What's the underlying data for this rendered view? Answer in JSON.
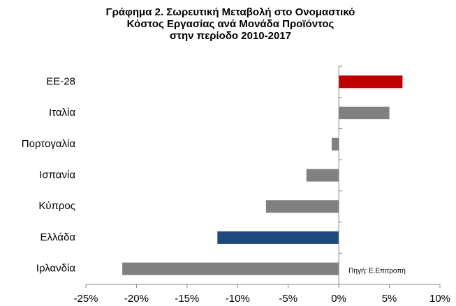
{
  "chart_data": {
    "type": "hbar",
    "title": [
      "Γράφημα 2. Σωρευτική Μεταβολή στο Ονομαστικό",
      "Κόστος Εργασίας ανά Μονάδα Προϊόντος",
      "στην περίοδο 2010-2017"
    ],
    "categories": [
      "ΕΕ-28",
      "Ιταλία",
      "Πορτογαλία",
      "Ισπανία",
      "Κύπρος",
      "Ελλάδα",
      "Ιρλανδία"
    ],
    "values": [
      6.3,
      5.0,
      -0.7,
      -3.2,
      -7.2,
      -12.0,
      -21.4
    ],
    "colors": [
      "#c00000",
      "#808080",
      "#808080",
      "#808080",
      "#808080",
      "#1f497d",
      "#808080"
    ],
    "xlim": [
      -25,
      10
    ],
    "xticks": [
      {
        "value": -25,
        "label": "-25%"
      },
      {
        "value": -20,
        "label": "-20%"
      },
      {
        "value": -15,
        "label": "-15%"
      },
      {
        "value": -10,
        "label": "-10%"
      },
      {
        "value": -5,
        "label": "-5%"
      },
      {
        "value": 0,
        "label": "0%"
      },
      {
        "value": 5,
        "label": "5%"
      },
      {
        "value": 10,
        "label": "10%"
      }
    ],
    "annotation": "Πηγή: Ε.Επιτροπή"
  }
}
